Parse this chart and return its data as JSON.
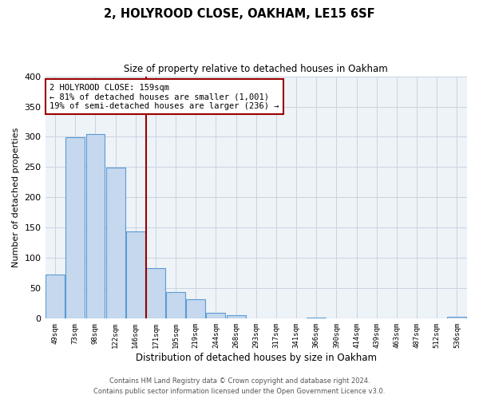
{
  "title": "2, HOLYROOD CLOSE, OAKHAM, LE15 6SF",
  "subtitle": "Size of property relative to detached houses in Oakham",
  "xlabel": "Distribution of detached houses by size in Oakham",
  "ylabel": "Number of detached properties",
  "bar_color": "#c5d8ed",
  "bar_edge_color": "#5b9bd5",
  "background_color": "#ffffff",
  "plot_bg_color": "#eef3f8",
  "grid_color": "#c8d4e0",
  "bin_labels": [
    "49sqm",
    "73sqm",
    "98sqm",
    "122sqm",
    "146sqm",
    "171sqm",
    "195sqm",
    "219sqm",
    "244sqm",
    "268sqm",
    "293sqm",
    "317sqm",
    "341sqm",
    "366sqm",
    "390sqm",
    "414sqm",
    "439sqm",
    "463sqm",
    "487sqm",
    "512sqm",
    "536sqm"
  ],
  "bar_heights": [
    73,
    299,
    304,
    249,
    144,
    83,
    44,
    32,
    9,
    6,
    0,
    0,
    0,
    2,
    0,
    0,
    0,
    0,
    0,
    0,
    3
  ],
  "ylim": [
    0,
    400
  ],
  "yticks": [
    0,
    50,
    100,
    150,
    200,
    250,
    300,
    350,
    400
  ],
  "vline_color": "#990000",
  "annotation_line1": "2 HOLYROOD CLOSE: 159sqm",
  "annotation_line2": "← 81% of detached houses are smaller (1,001)",
  "annotation_line3": "19% of semi-detached houses are larger (236) →",
  "footer_line1": "Contains HM Land Registry data © Crown copyright and database right 2024.",
  "footer_line2": "Contains public sector information licensed under the Open Government Licence v3.0.",
  "fig_width": 6.0,
  "fig_height": 5.0
}
